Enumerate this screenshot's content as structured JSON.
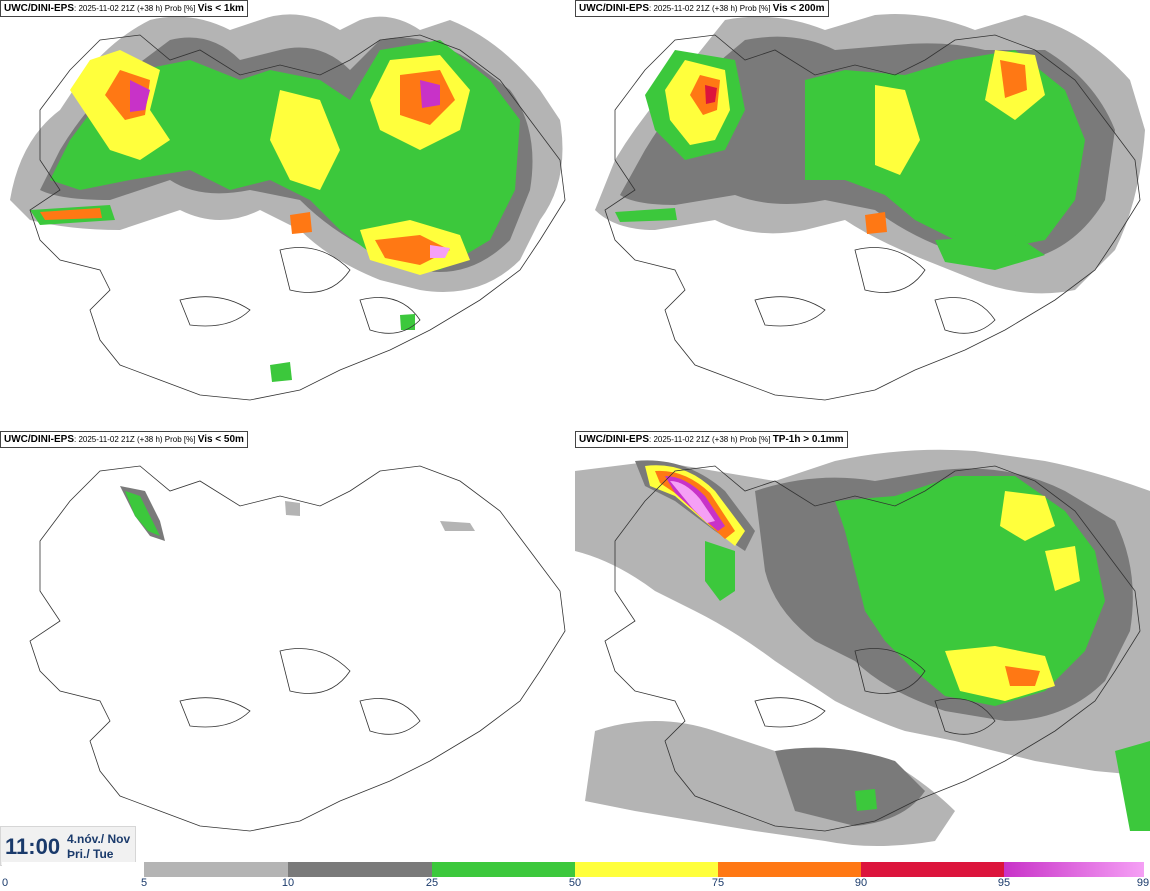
{
  "panels": [
    {
      "source": "UWC/DINI-EPS",
      "meta": ": 2025-11-02 21Z (+38 h) Prob [%] ",
      "field": "Vis < 1km"
    },
    {
      "source": "UWC/DINI-EPS",
      "meta": ": 2025-11-02 21Z (+38 h) Prob [%] ",
      "field": "Vis < 200m"
    },
    {
      "source": "UWC/DINI-EPS",
      "meta": ": 2025-11-02 21Z (+38 h) Prob [%] ",
      "field": "Vis < 50m"
    },
    {
      "source": "UWC/DINI-EPS",
      "meta": ": 2025-11-02 21Z (+38 h) Prob [%] ",
      "field": "TP-1h > 0.1mm"
    }
  ],
  "timestamp": {
    "time": "11:00",
    "date_line1": "4.nóv./ Nov",
    "date_line2": "Þri./ Tue"
  },
  "legend": {
    "ticks": [
      "0",
      "5",
      "10",
      "25",
      "50",
      "75",
      "90",
      "95",
      "99"
    ],
    "colors": [
      "#ffffff",
      "#b4b4b4",
      "#7a7a7a",
      "#3cc83c",
      "#ffff3c",
      "#ff7814",
      "#dc143c",
      "#c832c8",
      "#f5a0f5"
    ]
  },
  "icons": {
    "map_outline": "iceland-outline-icon"
  }
}
